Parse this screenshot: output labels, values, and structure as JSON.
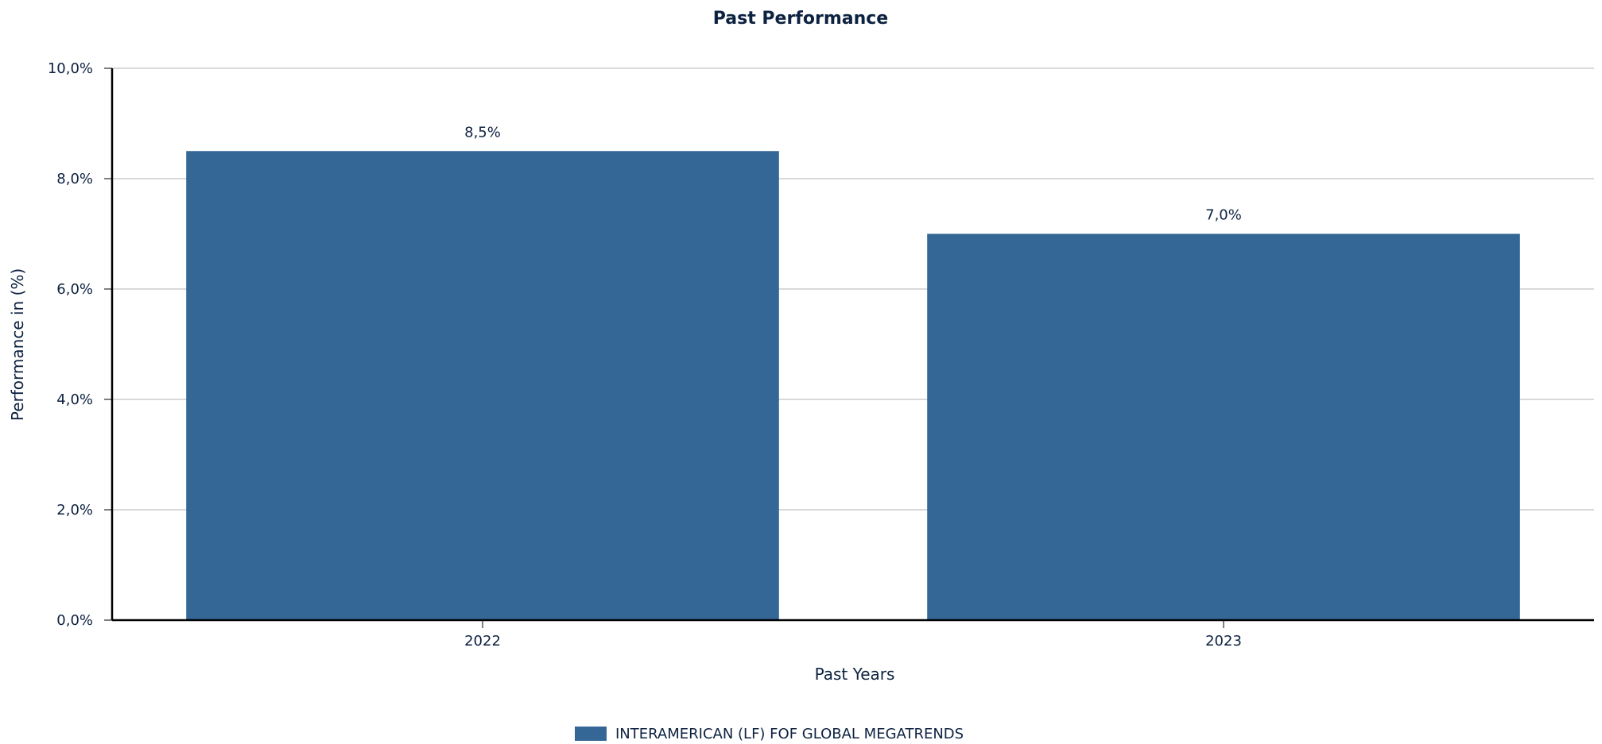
{
  "chart_data": {
    "type": "bar",
    "title": "Past Performance",
    "xlabel": "Past Years",
    "ylabel": "Performance in (%)",
    "categories": [
      "2022",
      "2023"
    ],
    "series": [
      {
        "name": "INTERAMERICAN (LF) FOF GLOBAL MEGATRENDS",
        "values": [
          8.5,
          7.0
        ],
        "color": "#346796"
      }
    ],
    "data_labels": [
      "8,5%",
      "7,0%"
    ],
    "ylim": [
      0,
      10
    ],
    "y_ticks": [
      0,
      2,
      4,
      6,
      8,
      10
    ],
    "y_tick_labels": [
      "0,0%",
      "2,0%",
      "4,0%",
      "6,0%",
      "8,0%",
      "10,0%"
    ],
    "grid": true,
    "legend_position": "bottom-center"
  }
}
